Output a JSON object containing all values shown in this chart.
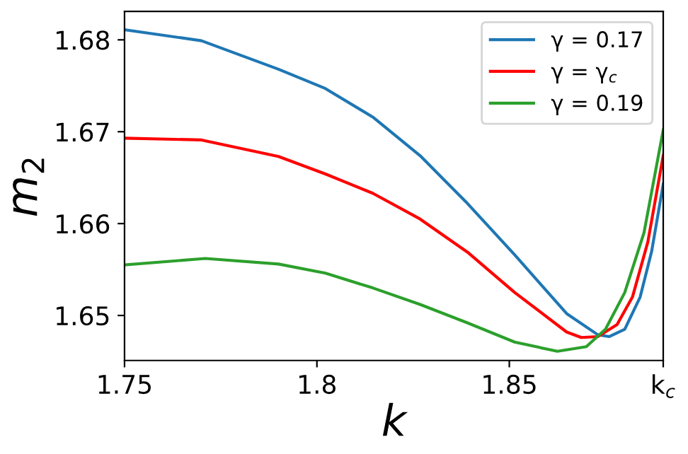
{
  "chart_data": {
    "type": "line",
    "xlabel": "k",
    "ylabel": "m$_{2}$",
    "xlim": [
      1.75,
      1.89
    ],
    "xticks": [
      1.75,
      1.8,
      1.85,
      {
        "value": 1.89,
        "label": "k$_{c}$"
      }
    ],
    "ylim": [
      1.6451,
      1.6831
    ],
    "yticks": [
      1.65,
      1.66,
      1.67,
      1.68
    ],
    "grid": false,
    "legend": "top right",
    "marker": "none",
    "line_style": "solid",
    "series": [
      {
        "name": "γ = 0.17",
        "color": "#1f77b4",
        "x": [
          1.75,
          1.77,
          1.79,
          1.8022,
          1.8145,
          1.8268,
          1.8391,
          1.8514,
          1.8649,
          1.873,
          1.876,
          1.88,
          1.884,
          1.887,
          1.89
        ],
        "values": [
          1.6811,
          1.6799,
          1.6768,
          1.6747,
          1.6716,
          1.6674,
          1.6622,
          1.6566,
          1.6502,
          1.6479,
          1.6477,
          1.6485,
          1.652,
          1.657,
          1.6643
        ]
      },
      {
        "name": "γ = γ$_{c}$",
        "color": "#ff0000",
        "x": [
          1.75,
          1.77,
          1.79,
          1.8022,
          1.8145,
          1.8268,
          1.8391,
          1.8514,
          1.8649,
          1.8687,
          1.873,
          1.878,
          1.882,
          1.886,
          1.89
        ],
        "values": [
          1.6693,
          1.6691,
          1.6673,
          1.6654,
          1.6633,
          1.6605,
          1.6569,
          1.6525,
          1.6482,
          1.6476,
          1.6477,
          1.649,
          1.652,
          1.658,
          1.6674
        ]
      },
      {
        "name": "γ = 0.19",
        "color": "#2ca02c",
        "x": [
          1.75,
          1.771,
          1.79,
          1.8022,
          1.8145,
          1.8268,
          1.8391,
          1.8514,
          1.8625,
          1.87,
          1.875,
          1.88,
          1.885,
          1.89
        ],
        "values": [
          1.6555,
          1.6562,
          1.6556,
          1.6546,
          1.653,
          1.6512,
          1.6492,
          1.6471,
          1.6461,
          1.6466,
          1.6485,
          1.6525,
          1.659,
          1.6702
        ]
      }
    ]
  }
}
